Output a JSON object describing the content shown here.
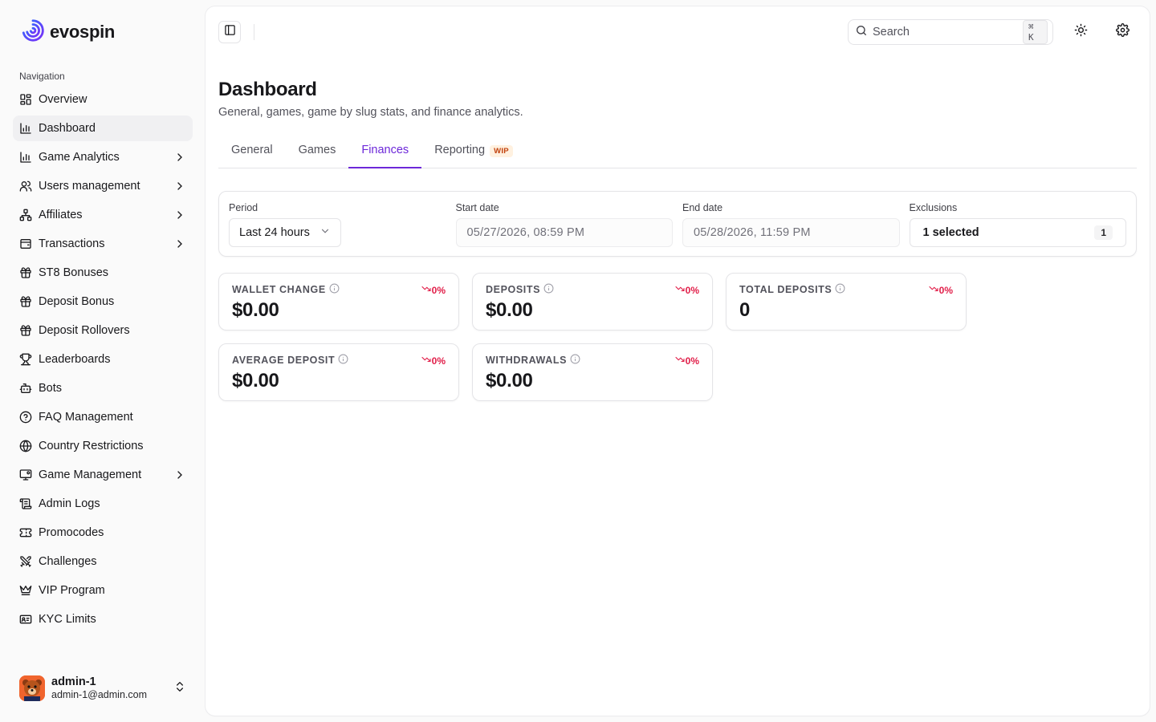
{
  "brand": {
    "name": "evospin",
    "accent": "#5b3df5"
  },
  "sidebar": {
    "group_label": "Navigation",
    "items": [
      {
        "label": "Overview",
        "icon": "grid-icon",
        "active": false,
        "has_submenu": false
      },
      {
        "label": "Dashboard",
        "icon": "bar-chart-icon",
        "active": true,
        "has_submenu": false
      },
      {
        "label": "Game Analytics",
        "icon": "bar-chart-icon",
        "active": false,
        "has_submenu": true
      },
      {
        "label": "Users management",
        "icon": "users-icon",
        "active": false,
        "has_submenu": true
      },
      {
        "label": "Affiliates",
        "icon": "network-icon",
        "active": false,
        "has_submenu": true
      },
      {
        "label": "Transactions",
        "icon": "wallet-icon",
        "active": false,
        "has_submenu": true
      },
      {
        "label": "ST8 Bonuses",
        "icon": "gift-icon",
        "active": false,
        "has_submenu": false
      },
      {
        "label": "Deposit Bonus",
        "icon": "gift-icon",
        "active": false,
        "has_submenu": false
      },
      {
        "label": "Deposit Rollovers",
        "icon": "gift-icon",
        "active": false,
        "has_submenu": false
      },
      {
        "label": "Leaderboards",
        "icon": "trophy-icon",
        "active": false,
        "has_submenu": false
      },
      {
        "label": "Bots",
        "icon": "bot-icon",
        "active": false,
        "has_submenu": false
      },
      {
        "label": "FAQ Management",
        "icon": "help-circle-icon",
        "active": false,
        "has_submenu": false
      },
      {
        "label": "Country Restrictions",
        "icon": "globe-icon",
        "active": false,
        "has_submenu": false
      },
      {
        "label": "Game Management",
        "icon": "monitor-icon",
        "active": false,
        "has_submenu": true
      },
      {
        "label": "Admin Logs",
        "icon": "scroll-icon",
        "active": false,
        "has_submenu": false
      },
      {
        "label": "Promocodes",
        "icon": "ticket-icon",
        "active": false,
        "has_submenu": false
      },
      {
        "label": "Challenges",
        "icon": "swords-icon",
        "active": false,
        "has_submenu": false
      },
      {
        "label": "VIP Program",
        "icon": "crown-icon",
        "active": false,
        "has_submenu": false
      },
      {
        "label": "KYC Limits",
        "icon": "id-card-icon",
        "active": false,
        "has_submenu": false
      }
    ]
  },
  "user": {
    "name": "admin-1",
    "email": "admin-1@admin.com"
  },
  "topbar": {
    "search_placeholder": "Search",
    "search_shortcut": "⌘ K"
  },
  "page": {
    "title": "Dashboard",
    "subtitle": "General, games, game by slug stats, and finance analytics."
  },
  "tabs": [
    {
      "label": "General",
      "active": false
    },
    {
      "label": "Games",
      "active": false
    },
    {
      "label": "Finances",
      "active": true
    },
    {
      "label": "Reporting",
      "active": false,
      "badge": "WIP"
    }
  ],
  "filters": {
    "period": {
      "label": "Period",
      "value": "Last 24 hours"
    },
    "start_date": {
      "label": "Start date",
      "value": "05/27/2026, 08:59 PM"
    },
    "end_date": {
      "label": "End date",
      "value": "05/28/2026, 11:59 PM"
    },
    "exclusions": {
      "label": "Exclusions",
      "value": "1 selected",
      "count": "1"
    }
  },
  "stats": [
    {
      "label": "WALLET CHANGE",
      "value": "$0.00",
      "change": "0%"
    },
    {
      "label": "DEPOSITS",
      "value": "$0.00",
      "change": "0%"
    },
    {
      "label": "TOTAL DEPOSITS",
      "value": "0",
      "change": "0%"
    },
    {
      "label": "AVERAGE DEPOSIT",
      "value": "$0.00",
      "change": "0%"
    },
    {
      "label": "WITHDRAWALS",
      "value": "$0.00",
      "change": "0%"
    }
  ],
  "colors": {
    "active_tab": "#6d28d9",
    "negative": "#e11d48",
    "wip_badge": "#c2410c"
  }
}
